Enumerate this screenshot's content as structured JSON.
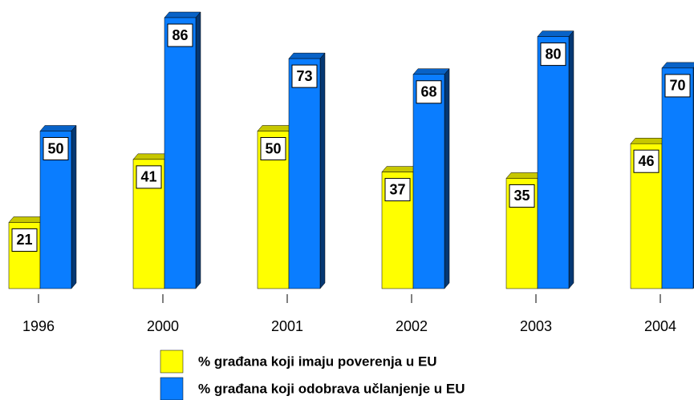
{
  "chart_data": {
    "type": "bar3d",
    "categories": [
      "1996",
      "2000",
      "2001",
      "2002",
      "2003",
      "2004"
    ],
    "series": [
      {
        "name": "% građana koji imaju poverenja u EU",
        "color": "#ffff00",
        "values": [
          21,
          41,
          50,
          37,
          35,
          46
        ]
      },
      {
        "name": "% građana koji odobrava učlanjenje u EU",
        "color": "#0a7dff",
        "values": [
          50,
          86,
          73,
          68,
          80,
          70
        ]
      }
    ],
    "legend": "bottom"
  }
}
